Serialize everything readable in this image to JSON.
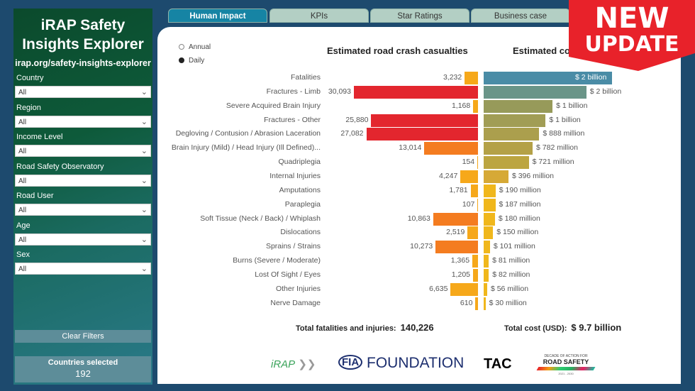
{
  "sidebar": {
    "title": "iRAP Safety Insights Explorer",
    "url": "irap.org/safety-insights-explorer",
    "filters": [
      {
        "label": "Country",
        "value": "All"
      },
      {
        "label": "Region",
        "value": "All"
      },
      {
        "label": "Income Level",
        "value": "All"
      },
      {
        "label": "Road Safety Observatory",
        "value": "All"
      },
      {
        "label": "Road User",
        "value": "All"
      },
      {
        "label": "Age",
        "value": "All"
      },
      {
        "label": "Sex",
        "value": "All"
      }
    ],
    "clear_label": "Clear Filters",
    "countries_label": "Countries selected",
    "countries_value": "192"
  },
  "tabs": [
    {
      "label": "Human Impact",
      "active": true
    },
    {
      "label": "KPIs"
    },
    {
      "label": "Star Ratings"
    },
    {
      "label": "Business case"
    }
  ],
  "period": {
    "options": [
      "Annual",
      "Daily"
    ],
    "selected": "Daily"
  },
  "badge": {
    "line1": "NEW",
    "line2": "UPDATE"
  },
  "chart_data": [
    {
      "type": "bar",
      "title": "Estimated road crash casualties",
      "orientation": "horizontal",
      "categories": [
        "Fatalities",
        "Fractures - Limb",
        "Severe Acquired Brain Injury",
        "Fractures - Other",
        "Degloving / Contusion / Abrasion Laceration",
        "Brain Injury (Mild) / Head Injury (Ill Defined)...",
        "Quadriplegia",
        "Internal Injuries",
        "Amputations",
        "Paraplegia",
        "Soft Tissue (Neck / Back) / Whiplash",
        "Dislocations",
        "Sprains / Strains",
        "Burns (Severe / Moderate)",
        "Lost Of Sight / Eyes",
        "Other Injuries",
        "Nerve Damage"
      ],
      "values": [
        3232,
        30093,
        1168,
        25880,
        27082,
        13014,
        154,
        4247,
        1781,
        107,
        10863,
        2519,
        10273,
        1365,
        1205,
        6635,
        610
      ],
      "labels": [
        "3,232",
        "30,093",
        "1,168",
        "25,880",
        "27,082",
        "13,014",
        "154",
        "4,247",
        "1,781",
        "107",
        "10,863",
        "2,519",
        "10,273",
        "1,365",
        "1,205",
        "6,635",
        "610"
      ],
      "total_label": "Total fatalities and injuries:",
      "total_value": "140,226"
    },
    {
      "type": "bar",
      "title": "Estimated cost",
      "orientation": "horizontal",
      "unit": "USD millions",
      "values": [
        2050,
        1640,
        1100,
        990,
        888,
        782,
        721,
        396,
        190,
        187,
        180,
        150,
        101,
        81,
        82,
        56,
        30
      ],
      "labels": [
        "$ 2 billion",
        "$ 2 billion",
        "$ 1 billion",
        "$ 1 billion",
        "$ 888 million",
        "$ 782 million",
        "$ 721 million",
        "$ 396 million",
        "$ 190 million",
        "$ 187 million",
        "$ 180 million",
        "$ 150 million",
        "$ 101 million",
        "$ 81 million",
        "$ 82 million",
        "$ 56 million",
        "$ 30 million"
      ],
      "total_label": "Total cost (USD):",
      "total_value": "$ 9.7 billion"
    }
  ],
  "logos": {
    "irap": "iRAP",
    "fia": "FOUNDATION",
    "fia_mark": "FIA",
    "tac": "TAC",
    "decade_top": "DECADE OF ACTION FOR",
    "decade": "ROAD SAFETY",
    "decade_years": "2021 - 2030"
  }
}
